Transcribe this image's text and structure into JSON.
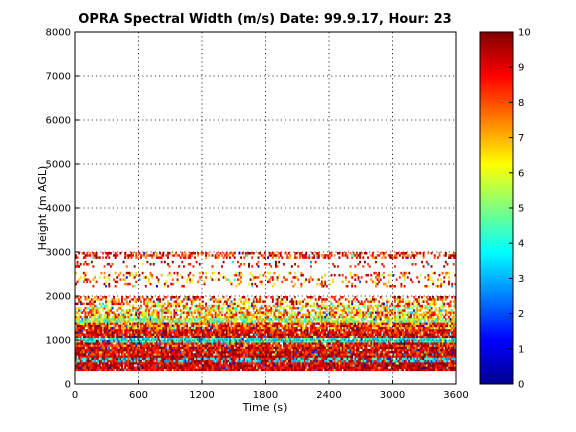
{
  "chart_data": {
    "type": "heatmap",
    "title": "OPRA Spectral Width (m/s)  Date: 99.9.17, Hour: 23",
    "xlabel": "Time (s)",
    "ylabel": "Height (m AGL)",
    "xlim": [
      0,
      3600
    ],
    "ylim": [
      0,
      8000
    ],
    "xticks": [
      "0",
      "600",
      "1200",
      "1800",
      "2400",
      "3000",
      "3600"
    ],
    "yticks": [
      "0",
      "1000",
      "2000",
      "3000",
      "4000",
      "5000",
      "6000",
      "7000",
      "8000"
    ],
    "grid": true,
    "colorbar": {
      "colormap": "jet",
      "range": [
        0,
        10
      ],
      "ticks": [
        "0",
        "1",
        "2",
        "3",
        "4",
        "5",
        "6",
        "7",
        "8",
        "9",
        "10"
      ]
    },
    "layers": [
      {
        "y0": 300,
        "y1": 650,
        "base": 9.2,
        "spread": 1.2,
        "coverage": 0.97
      },
      {
        "y0": 500,
        "y1": 600,
        "base": 3.6,
        "spread": 1.0,
        "coverage": 0.45
      },
      {
        "y0": 650,
        "y1": 850,
        "base": 9.0,
        "spread": 1.4,
        "coverage": 0.95
      },
      {
        "y0": 850,
        "y1": 1000,
        "base": 8.8,
        "spread": 1.6,
        "coverage": 0.95
      },
      {
        "y0": 950,
        "y1": 1050,
        "base": 3.8,
        "spread": 1.0,
        "coverage": 0.85
      },
      {
        "y0": 1050,
        "y1": 1250,
        "base": 9.0,
        "spread": 1.4,
        "coverage": 0.93
      },
      {
        "y0": 1250,
        "y1": 1400,
        "base": 8.2,
        "spread": 2.0,
        "coverage": 0.9
      },
      {
        "y0": 1400,
        "y1": 1500,
        "base": 5.5,
        "spread": 2.2,
        "coverage": 0.85
      },
      {
        "y0": 1500,
        "y1": 1650,
        "base": 7.0,
        "spread": 2.4,
        "coverage": 0.75
      },
      {
        "y0": 1650,
        "y1": 1800,
        "base": 6.5,
        "spread": 2.6,
        "coverage": 0.55
      },
      {
        "y0": 1800,
        "y1": 1950,
        "base": 7.8,
        "spread": 2.4,
        "coverage": 0.45
      },
      {
        "y0": 1950,
        "y1": 2000,
        "base": 9.0,
        "spread": 1.2,
        "coverage": 0.35
      },
      {
        "y0": 2200,
        "y1": 2350,
        "base": 8.0,
        "spread": 2.0,
        "coverage": 0.18
      },
      {
        "y0": 2350,
        "y1": 2550,
        "base": 7.8,
        "spread": 2.2,
        "coverage": 0.25
      },
      {
        "y0": 2650,
        "y1": 2800,
        "base": 9.0,
        "spread": 1.2,
        "coverage": 0.12
      },
      {
        "y0": 2850,
        "y1": 3000,
        "base": 8.8,
        "spread": 1.6,
        "coverage": 0.45
      }
    ]
  }
}
